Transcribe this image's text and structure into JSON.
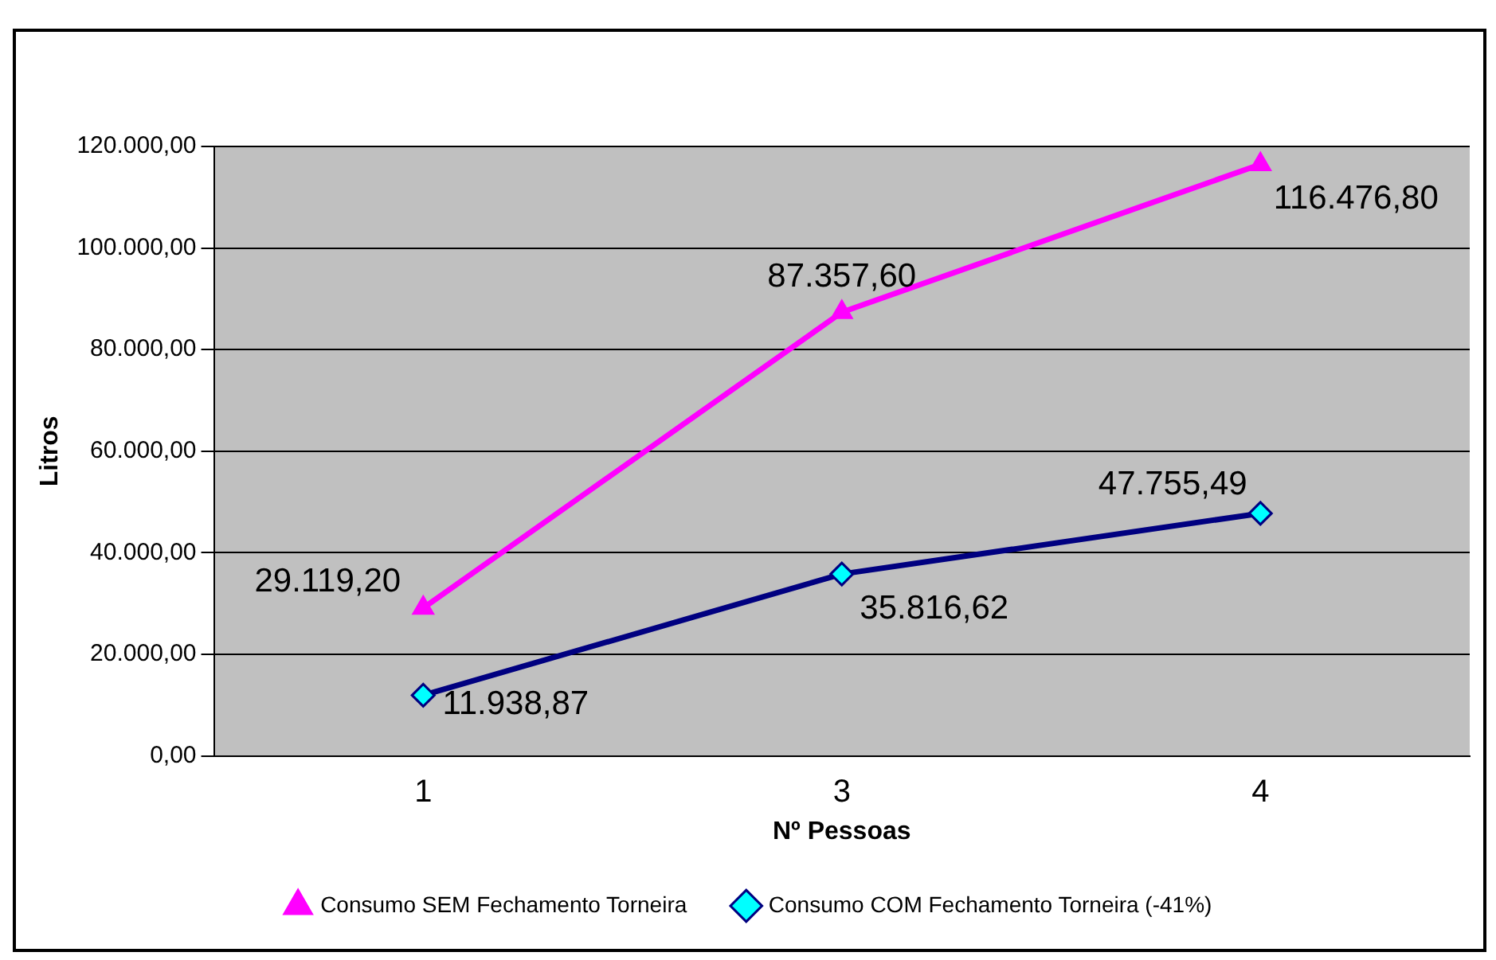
{
  "chart_data": {
    "type": "line",
    "xlabel": "Nº Pessoas",
    "ylabel": "Litros",
    "categories": [
      "1",
      "3",
      "4"
    ],
    "series": [
      {
        "name": "Consumo SEM Fechamento Torneira",
        "color": "#ff00ff",
        "marker": "triangle",
        "values": [
          29119.2,
          87357.6,
          116476.8
        ],
        "value_labels": [
          "29.119,20",
          "87.357,60",
          "116.476,80"
        ]
      },
      {
        "name": "Consumo COM Fechamento Torneira (-41%)",
        "color": "#000080",
        "marker": "diamond",
        "values": [
          11938.87,
          35816.62,
          47755.49
        ],
        "value_labels": [
          "11.938,87",
          "35.816,62",
          "47.755,49"
        ]
      }
    ],
    "ylim": [
      0,
      120000
    ],
    "yticks": [
      {
        "value": 0,
        "label": "0,00"
      },
      {
        "value": 20000,
        "label": "20.000,00"
      },
      {
        "value": 40000,
        "label": "40.000,00"
      },
      {
        "value": 60000,
        "label": "60.000,00"
      },
      {
        "value": 80000,
        "label": "80.000,00"
      },
      {
        "value": 100000,
        "label": "100.000,00"
      },
      {
        "value": 120000,
        "label": "120.000,00"
      }
    ],
    "grid": "y",
    "legend": "bottom"
  }
}
